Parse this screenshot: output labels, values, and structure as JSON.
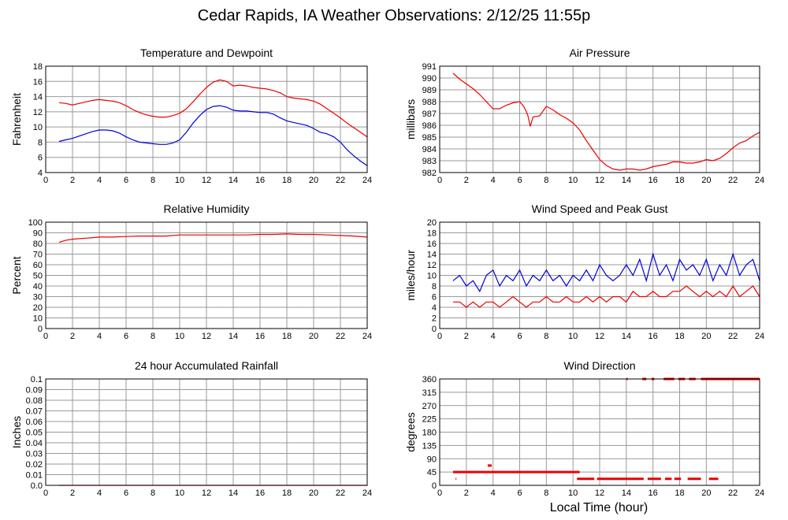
{
  "page": {
    "title": "Cedar Rapids, IA Weather Observations: 2/12/25 11:55p",
    "x_caption": "Local Time (hour)"
  },
  "colors": {
    "primary_series": "#ee0000",
    "secondary_series": "#0000dd",
    "grid": "#999999",
    "frame": "#000000"
  },
  "chart_data": [
    {
      "id": "temp",
      "type": "line",
      "title": "Temperature and Dewpoint",
      "xlabel": "",
      "ylabel": "Fahrenheit",
      "xlim": [
        0,
        24
      ],
      "ylim": [
        4,
        18
      ],
      "yticks": [
        "4",
        "6",
        "8",
        "10",
        "12",
        "14",
        "16",
        "18"
      ],
      "xticks": [
        "0",
        "2",
        "4",
        "6",
        "8",
        "10",
        "12",
        "14",
        "16",
        "18",
        "20",
        "22",
        "24"
      ],
      "grid": true,
      "series": [
        {
          "color": "#ee0000",
          "x": [
            1,
            1.5,
            2,
            2.5,
            3,
            3.5,
            4,
            4.5,
            5,
            5.5,
            6,
            6.5,
            7,
            7.5,
            8,
            8.5,
            9,
            9.5,
            10,
            10.5,
            11,
            11.5,
            12,
            12.5,
            13,
            13.5,
            14,
            14.5,
            15,
            15.5,
            16,
            16.5,
            17,
            17.5,
            18,
            18.5,
            19,
            19.5,
            20,
            20.5,
            21,
            21.5,
            22,
            22.5,
            23,
            23.5,
            24
          ],
          "y": [
            13.2,
            13.1,
            12.9,
            13.1,
            13.3,
            13.5,
            13.6,
            13.5,
            13.4,
            13.2,
            12.8,
            12.3,
            11.9,
            11.6,
            11.4,
            11.3,
            11.3,
            11.5,
            11.8,
            12.4,
            13.3,
            14.3,
            15.2,
            15.9,
            16.2,
            16.0,
            15.4,
            15.5,
            15.4,
            15.2,
            15.1,
            15.0,
            14.8,
            14.5,
            14.0,
            13.8,
            13.7,
            13.6,
            13.4,
            13.0,
            12.4,
            11.8,
            11.2,
            10.5,
            9.9,
            9.3,
            8.7
          ]
        },
        {
          "color": "#0000dd",
          "x": [
            1,
            1.5,
            2,
            2.5,
            3,
            3.5,
            4,
            4.5,
            5,
            5.5,
            6,
            6.5,
            7,
            7.5,
            8,
            8.5,
            9,
            9.5,
            10,
            10.5,
            11,
            11.5,
            12,
            12.5,
            13,
            13.5,
            14,
            14.5,
            15,
            15.5,
            16,
            16.5,
            17,
            17.5,
            18,
            18.5,
            19,
            19.5,
            20,
            20.5,
            21,
            21.5,
            22,
            22.5,
            23,
            23.5,
            24
          ],
          "y": [
            8.1,
            8.3,
            8.5,
            8.8,
            9.1,
            9.4,
            9.6,
            9.6,
            9.5,
            9.2,
            8.7,
            8.3,
            8.0,
            7.9,
            7.8,
            7.7,
            7.7,
            7.9,
            8.3,
            9.3,
            10.5,
            11.5,
            12.3,
            12.7,
            12.8,
            12.6,
            12.2,
            12.1,
            12.1,
            12.0,
            11.9,
            11.9,
            11.7,
            11.2,
            10.8,
            10.6,
            10.4,
            10.2,
            9.8,
            9.3,
            9.1,
            8.7,
            8.0,
            7.0,
            6.2,
            5.5,
            4.9
          ]
        }
      ]
    },
    {
      "id": "pressure",
      "type": "line",
      "title": "Air Pressure",
      "xlabel": "",
      "ylabel": "millibars",
      "xlim": [
        0,
        24
      ],
      "ylim": [
        982,
        991
      ],
      "yticks": [
        "982",
        "983",
        "984",
        "985",
        "986",
        "987",
        "988",
        "989",
        "990",
        "991"
      ],
      "xticks": [
        "0",
        "2",
        "4",
        "6",
        "8",
        "10",
        "12",
        "14",
        "16",
        "18",
        "20",
        "22",
        "24"
      ],
      "grid": true,
      "series": [
        {
          "color": "#ee0000",
          "x": [
            1,
            1.5,
            2,
            2.5,
            3,
            3.5,
            4,
            4.5,
            5,
            5.5,
            6,
            6.3,
            6.6,
            6.8,
            7,
            7.5,
            8,
            8.5,
            9,
            9.5,
            10,
            10.5,
            11,
            11.5,
            12,
            12.5,
            13,
            13.5,
            14,
            14.5,
            15,
            15.5,
            16,
            16.5,
            17,
            17.5,
            18,
            18.5,
            19,
            19.5,
            20,
            20.5,
            21,
            21.5,
            22,
            22.5,
            23,
            23.5,
            24
          ],
          "y": [
            990.4,
            989.9,
            989.5,
            989.1,
            988.6,
            988.0,
            987.4,
            987.4,
            987.7,
            987.9,
            988.0,
            987.6,
            986.9,
            985.9,
            986.7,
            986.8,
            987.6,
            987.3,
            986.9,
            986.6,
            986.2,
            985.6,
            984.7,
            983.9,
            983.1,
            982.6,
            982.3,
            982.2,
            982.3,
            982.3,
            982.2,
            982.3,
            982.5,
            982.6,
            982.7,
            982.9,
            982.9,
            982.8,
            982.8,
            982.9,
            983.1,
            983.0,
            983.2,
            983.6,
            984.1,
            984.5,
            984.7,
            985.1,
            985.4
          ]
        }
      ]
    },
    {
      "id": "humidity",
      "type": "line",
      "title": "Relative Humidity",
      "xlabel": "",
      "ylabel": "Percent",
      "xlim": [
        0,
        24
      ],
      "ylim": [
        0,
        100
      ],
      "yticks": [
        "0",
        "10",
        "20",
        "30",
        "40",
        "50",
        "60",
        "70",
        "80",
        "90",
        "100"
      ],
      "xticks": [
        "0",
        "2",
        "4",
        "6",
        "8",
        "10",
        "12",
        "14",
        "16",
        "18",
        "20",
        "22",
        "24"
      ],
      "grid": true,
      "series": [
        {
          "color": "#ee0000",
          "x": [
            1,
            1.5,
            2,
            2.5,
            3,
            3.5,
            4,
            5,
            6,
            7,
            8,
            9,
            10,
            11,
            12,
            13,
            14,
            15,
            16,
            17,
            18,
            19,
            20,
            21,
            22,
            23,
            24
          ],
          "y": [
            81,
            83,
            84,
            84.5,
            85,
            85.5,
            86,
            86,
            86.5,
            87,
            87,
            87,
            88,
            88,
            88,
            88,
            88,
            88,
            88.5,
            88.5,
            89,
            88.5,
            88.5,
            88,
            87.5,
            87,
            86
          ]
        }
      ]
    },
    {
      "id": "wind",
      "type": "line",
      "title": "Wind Speed and Peak Gust",
      "xlabel": "",
      "ylabel": "miles/hour",
      "xlim": [
        0,
        24
      ],
      "ylim": [
        0,
        20
      ],
      "yticks": [
        "0",
        "2",
        "4",
        "6",
        "8",
        "10",
        "12",
        "14",
        "16",
        "18",
        "20"
      ],
      "xticks": [
        "0",
        "2",
        "4",
        "6",
        "8",
        "10",
        "12",
        "14",
        "16",
        "18",
        "20",
        "22",
        "24"
      ],
      "grid": true,
      "series": [
        {
          "color": "#0000dd",
          "x": [
            1,
            1.5,
            2,
            2.5,
            3,
            3.5,
            4,
            4.5,
            5,
            5.5,
            6,
            6.5,
            7,
            7.5,
            8,
            8.5,
            9,
            9.5,
            10,
            10.5,
            11,
            11.5,
            12,
            12.5,
            13,
            13.5,
            14,
            14.5,
            15,
            15.5,
            16,
            16.5,
            17,
            17.5,
            18,
            18.5,
            19,
            19.5,
            20,
            20.5,
            21,
            21.5,
            22,
            22.5,
            23,
            23.5,
            24
          ],
          "y": [
            9,
            10,
            8,
            9,
            7,
            10,
            11,
            8,
            10,
            9,
            11,
            8,
            10,
            9,
            11,
            9,
            10,
            8,
            10,
            9,
            11,
            9,
            12,
            10,
            9,
            10,
            12,
            10,
            13,
            9,
            14,
            10,
            12,
            9,
            13,
            11,
            12,
            10,
            13,
            9,
            12,
            10,
            14,
            10,
            12,
            13,
            9
          ]
        },
        {
          "color": "#ee0000",
          "x": [
            1,
            1.5,
            2,
            2.5,
            3,
            3.5,
            4,
            4.5,
            5,
            5.5,
            6,
            6.5,
            7,
            7.5,
            8,
            8.5,
            9,
            9.5,
            10,
            10.5,
            11,
            11.5,
            12,
            12.5,
            13,
            13.5,
            14,
            14.5,
            15,
            15.5,
            16,
            16.5,
            17,
            17.5,
            18,
            18.5,
            19,
            19.5,
            20,
            20.5,
            21,
            21.5,
            22,
            22.5,
            23,
            23.5,
            24
          ],
          "y": [
            5,
            5,
            4,
            5,
            4,
            5,
            5,
            4,
            5,
            6,
            5,
            4,
            5,
            5,
            6,
            5,
            5,
            6,
            5,
            5,
            6,
            5,
            6,
            5,
            6,
            6,
            5,
            7,
            6,
            6,
            7,
            6,
            6,
            7,
            7,
            8,
            7,
            6,
            7,
            6,
            7,
            6,
            8,
            6,
            7,
            8,
            6
          ]
        }
      ]
    },
    {
      "id": "rain",
      "type": "line",
      "title": "24 hour Accumulated Rainfall",
      "xlabel": "",
      "ylabel": "Inches",
      "xlim": [
        0,
        24
      ],
      "ylim": [
        0,
        0.1
      ],
      "yticks": [
        "0.0",
        "0.01",
        "0.02",
        "0.03",
        "0.04",
        "0.05",
        "0.06",
        "0.07",
        "0.08",
        "0.09",
        "0.1"
      ],
      "xticks": [
        "0",
        "2",
        "4",
        "6",
        "8",
        "10",
        "12",
        "14",
        "16",
        "18",
        "20",
        "22",
        "24"
      ],
      "grid": true,
      "series": [
        {
          "color": "#ee0000",
          "x": [
            1,
            24
          ],
          "y": [
            0,
            0
          ]
        }
      ]
    },
    {
      "id": "direction",
      "type": "scatter",
      "title": "Wind Direction",
      "xlabel": "Local Time (hour)",
      "ylabel": "degrees",
      "xlim": [
        0,
        24
      ],
      "ylim": [
        0,
        360
      ],
      "yticks": [
        "0",
        "45",
        "90",
        "135",
        "180",
        "225",
        "270",
        "315",
        "360"
      ],
      "xticks": [
        "0",
        "2",
        "4",
        "6",
        "8",
        "10",
        "12",
        "14",
        "16",
        "18",
        "20",
        "22",
        "24"
      ],
      "grid": true,
      "series": [
        {
          "color": "#ee0000",
          "segments": [
            {
              "x": [
                1.0,
                10.5
              ],
              "y": 45
            },
            {
              "x": [
                3.6,
                3.9
              ],
              "y": 67
            },
            {
              "x": [
                1.2,
                1.25
              ],
              "y": 22
            },
            {
              "x": [
                10.3,
                11.6
              ],
              "y": 22
            },
            {
              "x": [
                11.8,
                15.3
              ],
              "y": 22
            },
            {
              "x": [
                15.6,
                16.6
              ],
              "y": 22
            },
            {
              "x": [
                16.9,
                17.4
              ],
              "y": 22
            },
            {
              "x": [
                17.6,
                18.1
              ],
              "y": 22
            },
            {
              "x": [
                18.6,
                19.6
              ],
              "y": 22
            },
            {
              "x": [
                20.2,
                20.9
              ],
              "y": 22
            },
            {
              "x": [
                14.0,
                14.1
              ],
              "y": 360
            },
            {
              "x": [
                15.2,
                15.5
              ],
              "y": 360
            },
            {
              "x": [
                15.9,
                16.1
              ],
              "y": 360
            },
            {
              "x": [
                16.8,
                17.6
              ],
              "y": 360
            },
            {
              "x": [
                17.9,
                18.4
              ],
              "y": 360
            },
            {
              "x": [
                18.7,
                19.2
              ],
              "y": 360
            },
            {
              "x": [
                19.6,
                24.0
              ],
              "y": 360
            }
          ]
        }
      ]
    }
  ]
}
